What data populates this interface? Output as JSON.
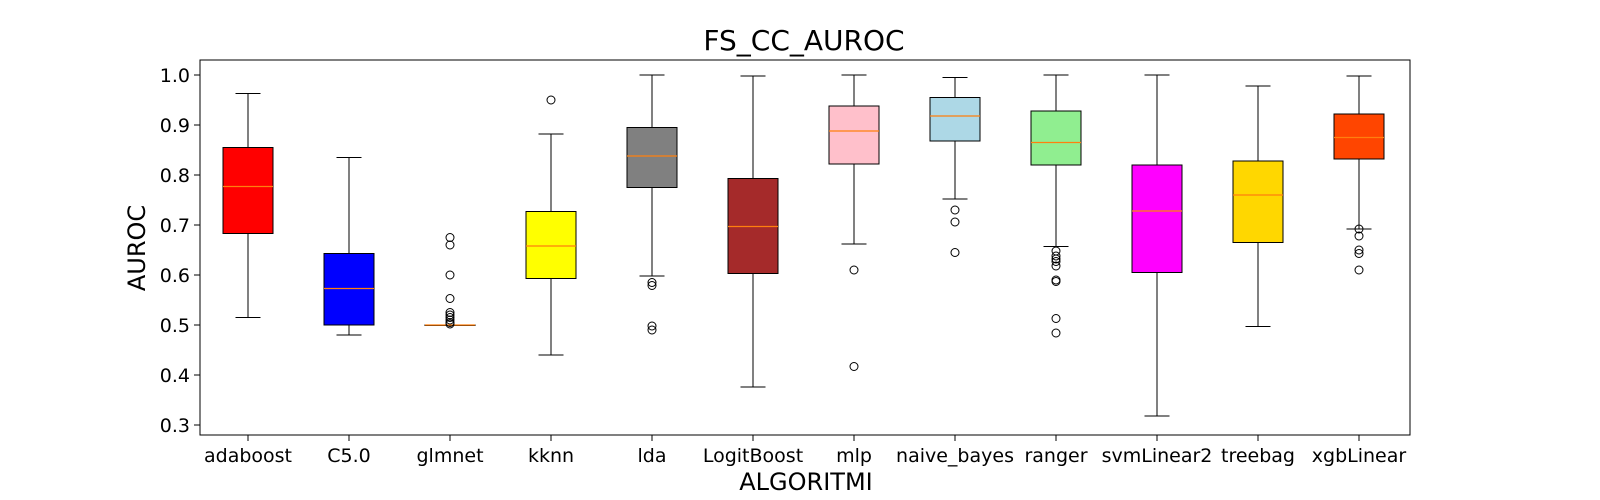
{
  "chart_data": {
    "type": "box",
    "title": "FS_CC_AUROC",
    "xlabel": "ALGORITMI",
    "ylabel": "AUROC",
    "ylim": [
      0.28,
      1.03
    ],
    "yticks": [
      "0.3",
      "0.4",
      "0.5",
      "0.6",
      "0.7",
      "0.8",
      "0.9",
      "1.0"
    ],
    "grid": false,
    "legend": "none",
    "series": [
      {
        "category": "adaboost",
        "color": "#ff0000",
        "min": 0.515,
        "q1": 0.683,
        "median": 0.777,
        "q3": 0.855,
        "max": 0.963,
        "outliers": []
      },
      {
        "category": "C5.0",
        "color": "#0000ff",
        "min": 0.48,
        "q1": 0.5,
        "median": 0.573,
        "q3": 0.643,
        "max": 0.835,
        "outliers": []
      },
      {
        "category": "glmnet",
        "color": "#ffffff",
        "min": 0.5,
        "q1": 0.5,
        "median": 0.5,
        "q3": 0.5,
        "max": 0.5,
        "outliers": [
          0.675,
          0.66,
          0.6,
          0.553,
          0.525,
          0.52,
          0.515,
          0.51,
          0.505,
          0.502
        ]
      },
      {
        "category": "kknn",
        "color": "#ffff00",
        "min": 0.44,
        "q1": 0.593,
        "median": 0.658,
        "q3": 0.727,
        "max": 0.882,
        "outliers": [
          0.95
        ]
      },
      {
        "category": "lda",
        "color": "#808080",
        "min": 0.598,
        "q1": 0.775,
        "median": 0.838,
        "q3": 0.895,
        "max": 1.0,
        "outliers": [
          0.585,
          0.579,
          0.498,
          0.49
        ]
      },
      {
        "category": "LogitBoost",
        "color": "#a52a2a",
        "min": 0.376,
        "q1": 0.603,
        "median": 0.697,
        "q3": 0.793,
        "max": 0.998,
        "outliers": []
      },
      {
        "category": "mlp",
        "color": "#ffc0cb",
        "min": 0.662,
        "q1": 0.822,
        "median": 0.888,
        "q3": 0.938,
        "max": 1.0,
        "outliers": [
          0.61,
          0.417
        ]
      },
      {
        "category": "naive_bayes",
        "color": "#add8e6",
        "min": 0.752,
        "q1": 0.868,
        "median": 0.918,
        "q3": 0.955,
        "max": 0.995,
        "outliers": [
          0.73,
          0.706,
          0.645
        ]
      },
      {
        "category": "ranger",
        "color": "#90ee90",
        "min": 0.657,
        "q1": 0.82,
        "median": 0.865,
        "q3": 0.928,
        "max": 1.0,
        "outliers": [
          0.648,
          0.638,
          0.632,
          0.627,
          0.618,
          0.59,
          0.587,
          0.513,
          0.484
        ]
      },
      {
        "category": "svmLinear2",
        "color": "#ff00ff",
        "min": 0.318,
        "q1": 0.605,
        "median": 0.728,
        "q3": 0.82,
        "max": 1.0,
        "outliers": []
      },
      {
        "category": "treebag",
        "color": "#ffd700",
        "min": 0.497,
        "q1": 0.665,
        "median": 0.76,
        "q3": 0.828,
        "max": 0.978,
        "outliers": []
      },
      {
        "category": "xgbLinear",
        "color": "#ff4500",
        "min": 0.692,
        "q1": 0.832,
        "median": 0.875,
        "q3": 0.922,
        "max": 0.998,
        "outliers": [
          0.692,
          0.678,
          0.65,
          0.643,
          0.61
        ]
      }
    ],
    "median_color": "#ff7f0e"
  }
}
